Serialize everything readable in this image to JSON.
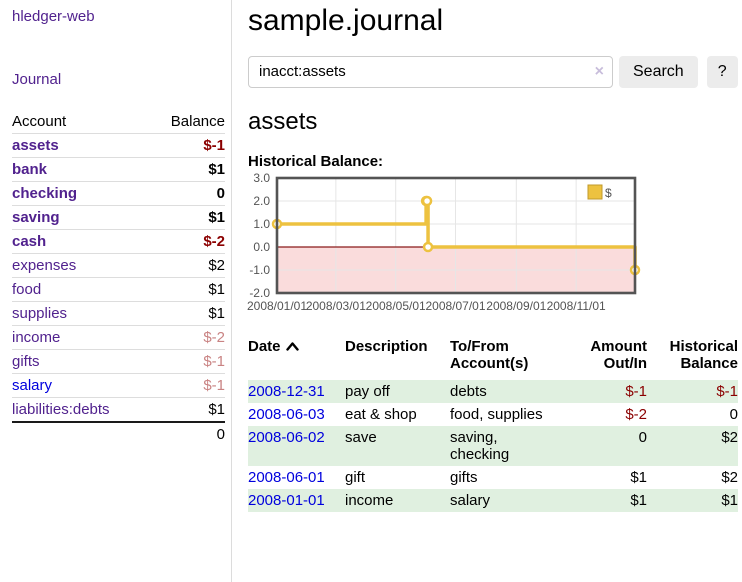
{
  "app": {
    "title": "hledger-web"
  },
  "colors": {
    "link_purple": "#51228e",
    "link_blue": "#0000dd",
    "negative_strong": "#8b0000",
    "negative_faded": "#c98383",
    "row_stripe_green": "#e0f0e0",
    "series_yellow": "#edc240",
    "series_point_border": "#c0992b",
    "negative_region_pink": "#fadcdc",
    "zero_line_red": "#8b1a1a",
    "chart_border": "#545454",
    "grid_line": "#e6e6e6"
  },
  "icons": {
    "clear_search": "×",
    "sort_ascending": "chevron-up"
  },
  "sidebar": {
    "journal_link": "Journal",
    "accounts": {
      "header_account": "Account",
      "header_balance": "Balance",
      "rows": [
        {
          "name": "assets",
          "balance": "$-1",
          "depth": 1,
          "bold": true,
          "neg": "strong"
        },
        {
          "name": "bank",
          "balance": "$1",
          "depth": 2,
          "bold": true,
          "neg": null
        },
        {
          "name": "checking",
          "balance": "0",
          "depth": 3,
          "bold": true,
          "neg": null
        },
        {
          "name": "saving",
          "balance": "$1",
          "depth": 3,
          "bold": true,
          "neg": null
        },
        {
          "name": "cash",
          "balance": "$-2",
          "depth": 2,
          "bold": true,
          "neg": "strong"
        },
        {
          "name": "expenses",
          "balance": "$2",
          "depth": 1,
          "bold": false,
          "neg": null
        },
        {
          "name": "food",
          "balance": "$1",
          "depth": 2,
          "bold": false,
          "neg": null
        },
        {
          "name": "supplies",
          "balance": "$1",
          "depth": 2,
          "bold": false,
          "neg": null
        },
        {
          "name": "income",
          "balance": "$-2",
          "depth": 1,
          "bold": false,
          "neg": "faded"
        },
        {
          "name": "gifts",
          "balance": "$-1",
          "depth": 2,
          "bold": false,
          "neg": "faded"
        },
        {
          "name": "salary",
          "balance": "$-1",
          "depth": 2,
          "bold": false,
          "neg": "faded",
          "link_color": "blue"
        },
        {
          "name": "liabilities:debts",
          "balance": "$1",
          "depth": 1,
          "bold": false,
          "neg": null
        }
      ],
      "total": "0"
    }
  },
  "main": {
    "title": "sample.journal",
    "search": {
      "value": "inacct:assets",
      "button_label": "Search",
      "help_label": "?"
    },
    "account_heading": "assets",
    "chart_label": "Historical Balance:"
  },
  "chart_data": {
    "type": "line",
    "title": "Historical Balance:",
    "step": true,
    "x_start": "2008-01-01",
    "x_end": "2008-12-31",
    "points": [
      {
        "date": "2008-01-01",
        "value": 1
      },
      {
        "date": "2008-06-01",
        "value": 2
      },
      {
        "date": "2008-06-02",
        "value": 2
      },
      {
        "date": "2008-06-03",
        "value": 0
      },
      {
        "date": "2008-12-31",
        "value": -1
      }
    ],
    "x_tick_labels": [
      "2008/01/01",
      "2008/03/01",
      "2008/05/01",
      "2008/07/01",
      "2008/09/01",
      "2008/11/01"
    ],
    "y_tick_labels": [
      "3.0",
      "2.0",
      "1.0",
      "0.0",
      "-1.0",
      "-2.0"
    ],
    "ylim": [
      -2,
      3
    ],
    "legend": {
      "label": "$",
      "position": "top-right"
    },
    "grid": true,
    "negative_region": true
  },
  "register": {
    "headers": {
      "date": "Date",
      "description": "Description",
      "accounts": "To/From Account(s)",
      "amount": "Amount Out/In",
      "balance": "Historical Balance"
    },
    "rows": [
      {
        "date": "2008-12-31",
        "description": "pay off",
        "accounts": "debts",
        "amount": "$-1",
        "balance": "$-1"
      },
      {
        "date": "2008-06-03",
        "description": "eat & shop",
        "accounts": "food, supplies",
        "amount": "$-2",
        "balance": "0"
      },
      {
        "date": "2008-06-02",
        "description": "save",
        "accounts": "saving, checking",
        "amount": "0",
        "balance": "$2"
      },
      {
        "date": "2008-06-01",
        "description": "gift",
        "accounts": "gifts",
        "amount": "$1",
        "balance": "$2"
      },
      {
        "date": "2008-01-01",
        "description": "income",
        "accounts": "salary",
        "amount": "$1",
        "balance": "$1"
      }
    ]
  }
}
